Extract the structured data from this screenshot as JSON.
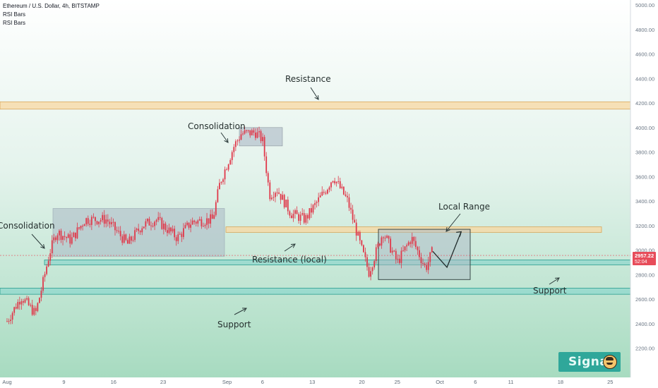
{
  "header": {
    "title": "Ethereum / U.S. Dollar, 4h, BITSTAMP",
    "indicator1": "RSI Bars",
    "indicator2": "RSI Bars"
  },
  "badge": {
    "text": "Signal",
    "icon": "smiley-logo-icon"
  },
  "colors": {
    "background_top": "#ffffff",
    "background_bottom": "#a7dbc0",
    "candle": "#e0384a",
    "resistance_band": "#f8d8a2",
    "resistance_border": "#d9a65a",
    "support_band": "#8fd7cc",
    "support_border": "#2a9e8f",
    "range_box": "#aab8c4",
    "price_tag": "#e74c5a",
    "arrow": "#2b3a3a"
  },
  "chart_data": {
    "type": "candlestick",
    "title": "Ethereum / U.S. Dollar, 4h, BITSTAMP",
    "ylim": [
      2100,
      5000
    ],
    "y_ticks": [
      "2200.00",
      "2400.00",
      "2600.00",
      "2800.00",
      "3000.00",
      "3200.00",
      "3400.00",
      "3600.00",
      "3800.00",
      "4000.00",
      "4200.00",
      "4400.00",
      "4600.00",
      "4800.00",
      "5000.00"
    ],
    "x_ticks": [
      "Aug",
      "9",
      "16",
      "23",
      "Sep",
      "6",
      "13",
      "20",
      "25",
      "Oct",
      "6",
      "11",
      "18",
      "25"
    ],
    "current_price": "2957.22",
    "countdown": "52:04",
    "close_series": [
      {
        "date": "Aug 1",
        "close": 2420
      },
      {
        "date": "Aug 3",
        "close": 2620
      },
      {
        "date": "Aug 5",
        "close": 2480
      },
      {
        "date": "Aug 6",
        "close": 2720
      },
      {
        "date": "Aug 7",
        "close": 2980
      },
      {
        "date": "Aug 8",
        "close": 3150
      },
      {
        "date": "Aug 10",
        "close": 3080
      },
      {
        "date": "Aug 12",
        "close": 3250
      },
      {
        "date": "Aug 15",
        "close": 3250
      },
      {
        "date": "Aug 18",
        "close": 3050
      },
      {
        "date": "Aug 20",
        "close": 3200
      },
      {
        "date": "Aug 22",
        "close": 3250
      },
      {
        "date": "Aug 25",
        "close": 3100
      },
      {
        "date": "Aug 27",
        "close": 3230
      },
      {
        "date": "Aug 30",
        "close": 3250
      },
      {
        "date": "Aug 31",
        "close": 3550
      },
      {
        "date": "Sep 2",
        "close": 3850
      },
      {
        "date": "Sep 3",
        "close": 3950
      },
      {
        "date": "Sep 5",
        "close": 3960
      },
      {
        "date": "Sep 6",
        "close": 3900
      },
      {
        "date": "Sep 7",
        "close": 3450
      },
      {
        "date": "Sep 8",
        "close": 3500
      },
      {
        "date": "Sep 10",
        "close": 3300
      },
      {
        "date": "Sep 12",
        "close": 3250
      },
      {
        "date": "Sep 15",
        "close": 3500
      },
      {
        "date": "Sep 16",
        "close": 3600
      },
      {
        "date": "Sep 18",
        "close": 3400
      },
      {
        "date": "Sep 20",
        "close": 3000
      },
      {
        "date": "Sep 21",
        "close": 2820
      },
      {
        "date": "Sep 23",
        "close": 3150
      },
      {
        "date": "Sep 25",
        "close": 2900
      },
      {
        "date": "Sep 27",
        "close": 3100
      },
      {
        "date": "Sep 29",
        "close": 2850
      },
      {
        "date": "Sep 30",
        "close": 3000
      }
    ],
    "levels": [
      {
        "name": "Resistance",
        "low": 4150,
        "high": 4210
      },
      {
        "name": "Resistance (local)",
        "low": 3145,
        "high": 3190
      },
      {
        "name": "Support",
        "low": 2880,
        "high": 2920
      },
      {
        "name": "Support",
        "low": 2640,
        "high": 2690
      }
    ]
  },
  "annotations": {
    "resistance": "Resistance",
    "consolidation_top": "Consolidation",
    "consolidation_left": "Consolidation",
    "local_range": "Local Range",
    "resistance_local": "Resistance (local)",
    "support_bottom": "Support",
    "support_right": "Support"
  }
}
